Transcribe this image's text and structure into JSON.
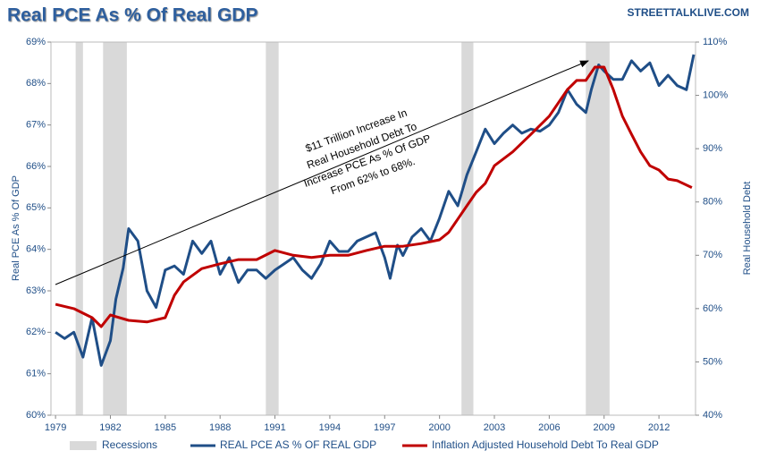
{
  "chart_data": {
    "type": "line",
    "title": "Real PCE As % Of Real GDP",
    "source": "STREETTALKLIVE.COM",
    "ylabel": "Real PCE As % Of GDP",
    "y2label": "Real Household Debt",
    "annotation": [
      "$11 Trillion Increase In",
      "Real Household Debt To",
      "Increase PCE As % Of GDP",
      "From 62% to 68%."
    ],
    "xlim": [
      1978.75,
      2014
    ],
    "xticks": [
      1979,
      1982,
      1985,
      1988,
      1991,
      1994,
      1997,
      2000,
      2003,
      2006,
      2009,
      2012
    ],
    "ylim": [
      60,
      69
    ],
    "yticks": [
      {
        "value": 60,
        "label": "60%"
      },
      {
        "value": 61,
        "label": "61%"
      },
      {
        "value": 62,
        "label": "62%"
      },
      {
        "value": 63,
        "label": "63%"
      },
      {
        "value": 64,
        "label": "64%"
      },
      {
        "value": 65,
        "label": "65%"
      },
      {
        "value": 66,
        "label": "66%"
      },
      {
        "value": 67,
        "label": "67%"
      },
      {
        "value": 68,
        "label": "68%"
      },
      {
        "value": 69,
        "label": "69%"
      }
    ],
    "y2lim": [
      40,
      110
    ],
    "y2ticks": [
      {
        "value": 40,
        "label": "40%"
      },
      {
        "value": 50,
        "label": "50%"
      },
      {
        "value": 60,
        "label": "60%"
      },
      {
        "value": 70,
        "label": "70%"
      },
      {
        "value": 80,
        "label": "80%"
      },
      {
        "value": 90,
        "label": "90%"
      },
      {
        "value": 100,
        "label": "100%"
      },
      {
        "value": 110,
        "label": "110%"
      }
    ],
    "recession_label": "Recessions",
    "recession_color": "#d9d9d9",
    "recessions": [
      [
        1980.1,
        1980.5
      ],
      [
        1981.6,
        1982.9
      ],
      [
        1990.5,
        1991.2
      ],
      [
        2001.2,
        2001.85
      ],
      [
        2008.0,
        2009.3
      ]
    ],
    "series": [
      {
        "name": "REAL PCE AS % OF REAL GDP",
        "color": "#1f4e87",
        "x": [
          1979,
          1979.5,
          1980,
          1980.5,
          1981,
          1981.5,
          1982,
          1982.3,
          1982.7,
          1983,
          1983.5,
          1984,
          1984.5,
          1985,
          1985.5,
          1986,
          1986.5,
          1987,
          1987.5,
          1988,
          1988.5,
          1989,
          1989.5,
          1990,
          1990.5,
          1991,
          1991.5,
          1992,
          1992.5,
          1993,
          1993.5,
          1994,
          1994.5,
          1995,
          1995.5,
          1996,
          1996.5,
          1997,
          1997.3,
          1997.7,
          1998,
          1998.5,
          1999,
          1999.5,
          2000,
          2000.5,
          2001,
          2001.5,
          2002,
          2002.5,
          2003,
          2003.5,
          2004,
          2004.5,
          2005,
          2005.5,
          2006,
          2006.5,
          2007,
          2007.5,
          2008,
          2008.3,
          2008.7,
          2009,
          2009.5,
          2010,
          2010.5,
          2011,
          2011.5,
          2012,
          2012.5,
          2013,
          2013.5,
          2013.9
        ],
        "values": [
          62.0,
          61.85,
          62.0,
          61.4,
          62.35,
          61.2,
          61.8,
          62.8,
          63.55,
          64.5,
          64.2,
          63.0,
          62.6,
          63.5,
          63.6,
          63.4,
          64.2,
          63.9,
          64.2,
          63.4,
          63.8,
          63.2,
          63.5,
          63.5,
          63.3,
          63.5,
          63.65,
          63.8,
          63.5,
          63.3,
          63.65,
          64.2,
          63.95,
          63.95,
          64.2,
          64.3,
          64.4,
          63.8,
          63.3,
          64.1,
          63.85,
          64.3,
          64.5,
          64.2,
          64.75,
          65.4,
          65.05,
          65.8,
          66.35,
          66.9,
          66.55,
          66.8,
          67.0,
          66.8,
          66.9,
          66.85,
          67.0,
          67.3,
          67.85,
          67.5,
          67.3,
          67.85,
          68.45,
          68.3,
          68.1,
          68.1,
          68.55,
          68.3,
          68.5,
          67.95,
          68.2,
          67.95,
          67.85,
          68.7
        ]
      },
      {
        "name": "Inflation Adjusted Household Debt To Real GDP",
        "color": "#c00000",
        "axis": "y2",
        "x": [
          1979,
          1980,
          1981,
          1981.5,
          1982,
          1983,
          1984,
          1985,
          1985.5,
          1986,
          1987,
          1988,
          1989,
          1990,
          1991,
          1992,
          1993,
          1994,
          1995,
          1996,
          1997,
          1998,
          1999,
          2000,
          2000.5,
          2001,
          2001.5,
          2002,
          2002.5,
          2003,
          2004,
          2005,
          2006,
          2007,
          2007.5,
          2008,
          2008.5,
          2009,
          2009.5,
          2010,
          2010.5,
          2011,
          2011.5,
          2012,
          2012.5,
          2013,
          2013.8
        ],
        "values": [
          60.8,
          60.0,
          58.3,
          56.6,
          58.8,
          57.8,
          57.5,
          58.3,
          62.5,
          65.0,
          67.5,
          68.4,
          69.2,
          69.2,
          70.9,
          70.0,
          69.6,
          70.0,
          70.0,
          70.9,
          71.7,
          71.7,
          72.2,
          72.9,
          74.3,
          76.8,
          79.3,
          81.8,
          83.5,
          86.8,
          89.4,
          92.7,
          96.1,
          101.1,
          102.8,
          102.8,
          105.3,
          105.3,
          101.1,
          96.1,
          92.7,
          89.4,
          86.8,
          86.0,
          84.3,
          84.0,
          82.7
        ]
      }
    ]
  }
}
